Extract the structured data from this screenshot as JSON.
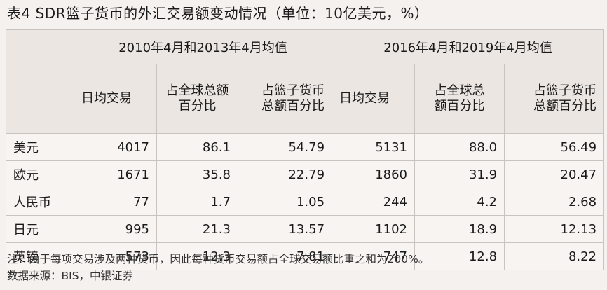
{
  "title": "表4  SDR篮子货币的外汇交易额变动情况（单位：10亿美元，%）",
  "table": {
    "group_headers": [
      "2010年4月和2013年4月均值",
      "2016年4月和2019年4月均值"
    ],
    "sub_headers": [
      [
        "日均交易"
      ],
      [
        "占全球总额",
        "百分比"
      ],
      [
        "占篮子货币",
        "总额百分比"
      ],
      [
        "日均交易"
      ],
      [
        "占全球总",
        "额百分比"
      ],
      [
        "占篮子货币",
        "总额百分比"
      ]
    ],
    "rows": [
      {
        "label": "美元",
        "values": [
          "4017",
          "86.1",
          "54.79",
          "5131",
          "88.0",
          "56.49"
        ]
      },
      {
        "label": "欧元",
        "values": [
          "1671",
          "35.8",
          "22.79",
          "1860",
          "31.9",
          "20.47"
        ]
      },
      {
        "label": "人民币",
        "values": [
          "77",
          "1.7",
          "1.05",
          "244",
          "4.2",
          "2.68"
        ]
      },
      {
        "label": "日元",
        "values": [
          "995",
          "21.3",
          "13.57",
          "1102",
          "18.9",
          "12.13"
        ]
      },
      {
        "label": "英镑",
        "values": [
          "573",
          "12.3",
          "7.81",
          "747",
          "12.8",
          "8.22"
        ]
      }
    ]
  },
  "notes": [
    "注：由于每项交易涉及两种货币，因此每种货币交易额占全球交易额比重之和为200%。",
    "数据来源：BIS，中银证券"
  ]
}
